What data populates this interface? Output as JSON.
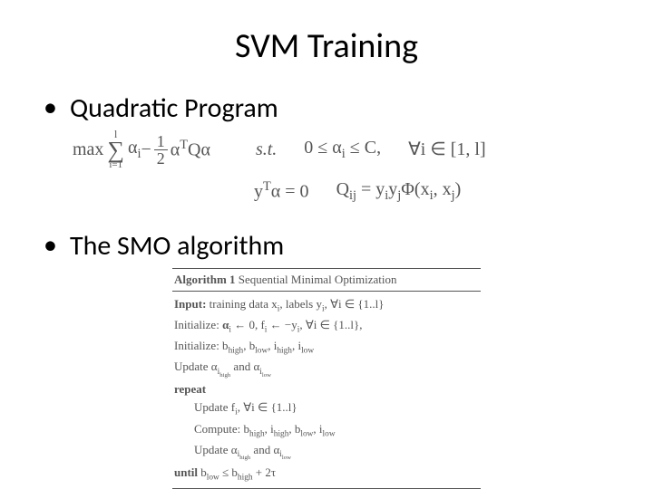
{
  "title": "SVM Training",
  "bullets": {
    "b1": "Quadratic Program",
    "b2": "The SMO algorithm"
  },
  "math": {
    "max": "max",
    "sum_upper": "l",
    "sum_lower": "i=1",
    "alpha_i": "α",
    "alpha_i_sub": "i",
    "minus": " − ",
    "frac_num": "1",
    "frac_den": "2",
    "aTQa": "α",
    "aTQa_sup": "T",
    "aTQa_tail": "Qα",
    "st": "s.t.",
    "bound": "0 ≤ α",
    "bound_sub": "i",
    "bound_tail": " ≤ C,",
    "forall": "∀i ∈ [1, l]",
    "yTa": "y",
    "yTa_sup": "T",
    "yTa_tail": "α = 0",
    "Qij_lhs": "Q",
    "Qij_sub": "ij",
    "Qij_eq": " = y",
    "Qij_sub2": "i",
    "Qij_mid": "y",
    "Qij_sub3": "j",
    "Qij_phi": "Φ(x",
    "Qij_sub4": "i",
    "Qij_comma": ", x",
    "Qij_sub5": "j",
    "Qij_close": ")"
  },
  "algo": {
    "header": "Algorithm 1",
    "header_tail": " Sequential Minimal Optimization",
    "l1a": "Input:",
    "l1b": " training data x",
    "l1b_sub": "i",
    "l1c": ", labels y",
    "l1c_sub": "i",
    "l1d": ", ∀i ∈ {1..l}",
    "l2a": "Initialize: ",
    "l2b": "α",
    "l2b_sub": "i",
    "l2c": " ← 0, f",
    "l2c_sub": "i",
    "l2d": " ← −y",
    "l2d_sub": "i",
    "l2e": ", ∀i ∈ {1..l},",
    "l3a": "Initialize: b",
    "l3a_sub": "high",
    "l3b": ", b",
    "l3b_sub": "low",
    "l3c": ", i",
    "l3c_sub": "high",
    "l3d": ", i",
    "l3d_sub": "low",
    "l4a": "Update α",
    "l4a_sub": "i",
    "l4a_subsub": "high",
    "l4b": " and α",
    "l4b_sub": "i",
    "l4b_subsub": "low",
    "l5": "repeat",
    "l6a": "Update f",
    "l6a_sub": "i",
    "l6b": ", ∀i ∈ {1..l}",
    "l7a": "Compute: b",
    "l7a_sub": "high",
    "l7b": ", i",
    "l7b_sub": "high",
    "l7c": ", b",
    "l7c_sub": "low",
    "l7d": ", i",
    "l7d_sub": "low",
    "l8a": "Update α",
    "l8a_sub": "i",
    "l8a_subsub": "high",
    "l8b": " and α",
    "l8b_sub": "i",
    "l8b_subsub": "low",
    "l9a": "until",
    "l9b": " b",
    "l9b_sub": "low",
    "l9c": " ≤ b",
    "l9c_sub": "high",
    "l9d": " + 2τ"
  },
  "style": {
    "background_color": "#ffffff",
    "title_fontsize": 38,
    "bullet_fontsize": 30,
    "math_fontsize": 20,
    "algo_fontsize": 13,
    "text_color": "#000000",
    "math_color": "#555555",
    "font_body": "Calibri",
    "font_math": "Times New Roman"
  }
}
